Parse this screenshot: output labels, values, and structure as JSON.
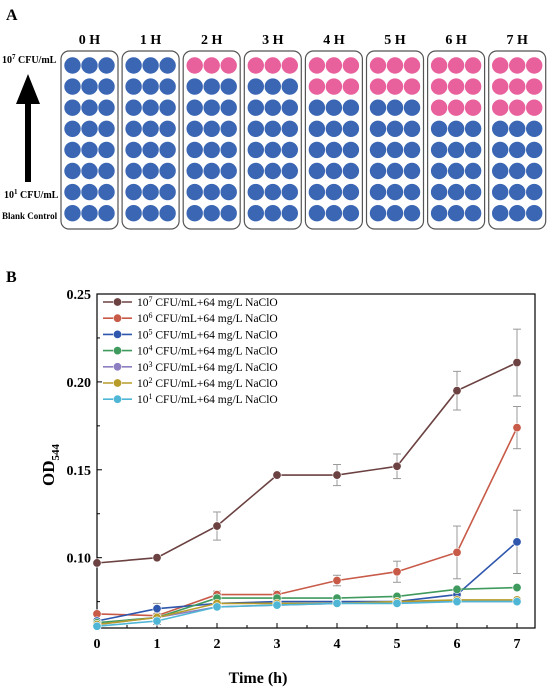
{
  "panel_a": {
    "letter": "A",
    "hours": [
      "0 H",
      "1 H",
      "2 H",
      "3 H",
      "4 H",
      "5 H",
      "6 H",
      "7 H"
    ],
    "row_labels": {
      "top_base": "10",
      "top_exp": "7",
      "top_unit": " CFU/mL",
      "bottom_base": "10",
      "bottom_exp": "1",
      "bottom_unit": " CFU/mL",
      "blank": "Blank Control"
    },
    "colors": {
      "negative": "#3a66b3",
      "positive": "#e8609c",
      "plate_border": "#555555"
    },
    "pink_rows_per_hour": [
      0,
      0,
      1,
      1,
      2,
      2,
      3,
      3
    ],
    "rows": 8,
    "cols_per_hour": 3
  },
  "chart_data": {
    "type": "line",
    "panel_letter": "B",
    "xlabel": "Time (h)",
    "ylabel_main": "OD",
    "ylabel_sub": "544",
    "x": [
      0,
      1,
      2,
      3,
      4,
      5,
      6,
      7
    ],
    "xticks": [
      "0",
      "1",
      "2",
      "3",
      "4",
      "5",
      "6",
      "7"
    ],
    "yticks": [
      "0.10",
      "0.15",
      "0.20",
      "0.25"
    ],
    "ylim": [
      0.06,
      0.25
    ],
    "xlim": [
      0,
      7.3
    ],
    "legend_position": "top-left",
    "series": [
      {
        "name_base": "10",
        "name_exp": "7",
        "name_rest": " CFU/mL+64 mg/L NaClO",
        "color": "#6b4141",
        "values": [
          0.097,
          0.1,
          0.118,
          0.147,
          0.147,
          0.152,
          0.195,
          0.211
        ],
        "errors": [
          0.001,
          0.001,
          0.008,
          0.001,
          0.006,
          0.007,
          0.011,
          0.019
        ]
      },
      {
        "name_base": "10",
        "name_exp": "6",
        "name_rest": " CFU/mL+64 mg/L NaClO",
        "color": "#c85a48",
        "values": [
          0.068,
          0.067,
          0.079,
          0.079,
          0.087,
          0.092,
          0.103,
          0.174
        ],
        "errors": [
          0.001,
          0.001,
          0.002,
          0.002,
          0.003,
          0.006,
          0.015,
          0.012
        ]
      },
      {
        "name_base": "10",
        "name_exp": "5",
        "name_rest": " CFU/mL+64 mg/L NaClO",
        "color": "#2f57ad",
        "values": [
          0.064,
          0.071,
          0.074,
          0.075,
          0.075,
          0.075,
          0.079,
          0.109
        ],
        "errors": [
          0.001,
          0.003,
          0.002,
          0.001,
          0.001,
          0.001,
          0.003,
          0.018
        ]
      },
      {
        "name_base": "10",
        "name_exp": "4",
        "name_rest": " CFU/mL+64 mg/L NaClO",
        "color": "#3f9a5e",
        "values": [
          0.063,
          0.066,
          0.077,
          0.077,
          0.077,
          0.078,
          0.082,
          0.083
        ],
        "errors": [
          0.001,
          0.002,
          0.002,
          0.001,
          0.001,
          0.001,
          0.001,
          0.001
        ]
      },
      {
        "name_base": "10",
        "name_exp": "3",
        "name_rest": " CFU/mL+64 mg/L NaClO",
        "color": "#8d7fc1",
        "values": [
          0.062,
          0.066,
          0.072,
          0.073,
          0.074,
          0.075,
          0.075,
          0.075
        ],
        "errors": [
          0.001,
          0.002,
          0.001,
          0.001,
          0.001,
          0.001,
          0.001,
          0.001
        ]
      },
      {
        "name_base": "10",
        "name_exp": "2",
        "name_rest": " CFU/mL+64 mg/L NaClO",
        "color": "#b79c2a",
        "values": [
          0.062,
          0.066,
          0.074,
          0.074,
          0.074,
          0.075,
          0.076,
          0.076
        ],
        "errors": [
          0.001,
          0.002,
          0.001,
          0.001,
          0.001,
          0.001,
          0.001,
          0.001
        ]
      },
      {
        "name_base": "10",
        "name_exp": "1",
        "name_rest": " CFU/mL+64 mg/L NaClO",
        "color": "#4fb6d6",
        "values": [
          0.061,
          0.064,
          0.072,
          0.073,
          0.074,
          0.074,
          0.075,
          0.075
        ],
        "errors": [
          0.001,
          0.002,
          0.001,
          0.001,
          0.001,
          0.001,
          0.001,
          0.001
        ]
      }
    ]
  }
}
